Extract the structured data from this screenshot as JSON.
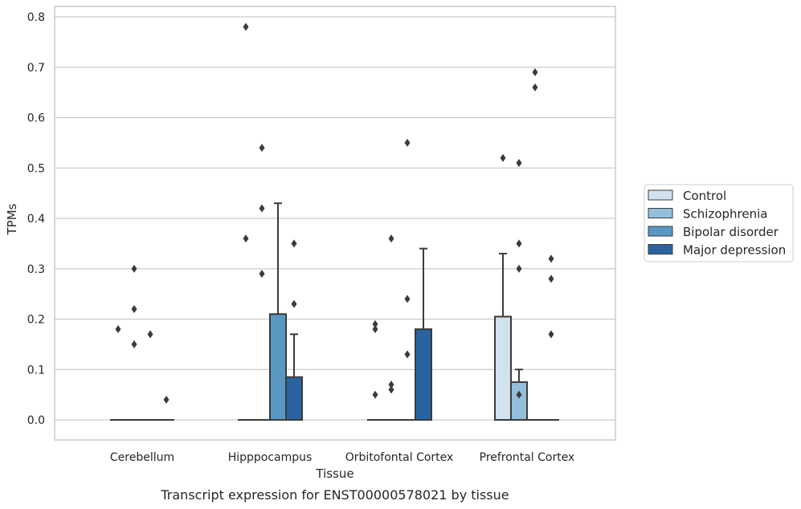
{
  "chart_data": {
    "type": "bar",
    "xlabel": "Tissue",
    "ylabel": "TPMs",
    "caption": "Transcript expression for ENST00000578021 by tissue",
    "ylim": [
      -0.04,
      0.82
    ],
    "yticks": [
      "0.0",
      "0.1",
      "0.2",
      "0.3",
      "0.4",
      "0.5",
      "0.6",
      "0.7",
      "0.8"
    ],
    "grid": "horizontal",
    "legend_position": "right",
    "categories": [
      "Cerebellum",
      "Hipppocampus",
      "Orbitofontal Cortex",
      "Prefrontal Cortex"
    ],
    "series": [
      {
        "name": "Control",
        "color": "#d0e1f0",
        "values": [
          0.0,
          0.0,
          0.0,
          0.205
        ],
        "whisker_high": [
          null,
          null,
          null,
          0.33
        ],
        "outliers": [
          [
            0.18
          ],
          [
            0.36,
            0.78
          ],
          [
            0.05,
            0.18,
            0.19
          ],
          [
            0.52
          ]
        ]
      },
      {
        "name": "Schizophrenia",
        "color": "#93bfdb",
        "values": [
          0.0,
          0.0,
          0.0,
          0.075
        ],
        "whisker_high": [
          null,
          null,
          null,
          0.1
        ],
        "outliers": [
          [
            0.15,
            0.22,
            0.3
          ],
          [
            0.29,
            0.42,
            0.54
          ],
          [
            0.06,
            0.07,
            0.36
          ],
          [
            0.05,
            0.3,
            0.35,
            0.51
          ]
        ]
      },
      {
        "name": "Bipolar disorder",
        "color": "#5a98c4",
        "values": [
          0.0,
          0.21,
          0.0,
          0.0
        ],
        "whisker_high": [
          null,
          0.43,
          null,
          null
        ],
        "outliers": [
          [
            0.17
          ],
          [],
          [
            0.13,
            0.24,
            0.55
          ],
          [
            0.66,
            0.69
          ]
        ]
      },
      {
        "name": "Major depression",
        "color": "#2a64a0",
        "values": [
          0.0,
          0.085,
          0.18,
          0.0
        ],
        "whisker_high": [
          null,
          0.17,
          0.34,
          null
        ],
        "outliers": [
          [
            0.04
          ],
          [
            0.23,
            0.35
          ],
          [],
          [
            0.17,
            0.28,
            0.32
          ]
        ]
      }
    ]
  },
  "colors": {
    "axes_edge": "#cccccc",
    "grid": "#cccccc",
    "mark_edge": "#3b3b3b",
    "outlier": "#3b3b3b"
  }
}
